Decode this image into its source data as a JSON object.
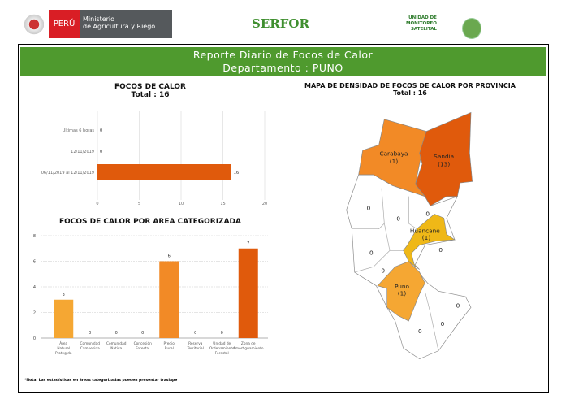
{
  "header": {
    "peru": "PERÚ",
    "ministry_line1": "Ministerio",
    "ministry_line2": "de Agricultura y Riego",
    "serfor": "SERFOR",
    "unit_line1": "UNIDAD DE",
    "unit_line2": "MONITOREO",
    "unit_line3": "SATELITAL"
  },
  "banner": {
    "title": "Reporte Diario de Focos de Calor",
    "subtitle": "Departamento : PUNO"
  },
  "chart1": {
    "title": "FOCOS DE CALOR",
    "total": "Total : 16"
  },
  "chart2": {
    "title": "FOCOS DE CALOR POR AREA CATEGORIZADA"
  },
  "map": {
    "title": "MAPA DE DENSIDAD DE FOCOS DE CALOR POR PROVINCIA",
    "total": "Total : 16",
    "provinces": [
      {
        "name": "Carabaya",
        "count": "(1)"
      },
      {
        "name": "Sandia",
        "count": "(13)"
      },
      {
        "name": "Huancane",
        "count": "(1)"
      },
      {
        "name": "Puno",
        "count": "(1)"
      }
    ],
    "zero": "0"
  },
  "note": "*Nota: Las estadísticas en áreas categorizadas pueden presentar traslape",
  "colors": {
    "green": "#4f9a2e",
    "dark_orange": "#e05a0c",
    "orange": "#f28a26",
    "light_orange": "#f5a733",
    "yellow": "#efb817"
  },
  "chart_data": [
    {
      "type": "bar",
      "orientation": "horizontal",
      "categories": [
        "Últimas 6 horas",
        "12/11/2019",
        "06/11/2019 al 12/11/2019"
      ],
      "values": [
        0,
        0,
        16
      ],
      "xlim": [
        0,
        20
      ],
      "xticks": [
        "0",
        "5",
        "10",
        "15",
        "20"
      ]
    },
    {
      "type": "bar",
      "categories": [
        "Área Natural Protegida",
        "Comunidad Campesina",
        "Comunidad Nativa",
        "Concesión Forestal",
        "Predio Rural",
        "Reserva Territorial",
        "Unidad de Ordenamiento Forestal",
        "Zona de Amortiguamiento"
      ],
      "values": [
        3,
        0,
        0,
        0,
        6,
        0,
        0,
        7
      ],
      "ylim": [
        0,
        8
      ],
      "yticks": [
        "0",
        "2",
        "4",
        "6",
        "8"
      ]
    }
  ]
}
